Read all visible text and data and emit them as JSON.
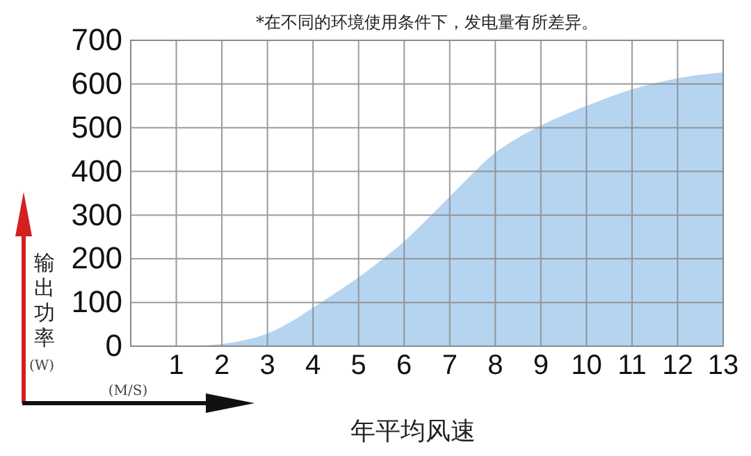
{
  "chart_data": {
    "type": "area",
    "title": "*在不同的环境使用条件下，发电量有所差异。",
    "xlabel": "年平均风速",
    "ylabel": "输出功率",
    "annotations": [
      "(W)",
      "(M/S)"
    ],
    "x": [
      1,
      1.5,
      2,
      2.5,
      3,
      3.5,
      4,
      4.5,
      5,
      5.5,
      6,
      6.5,
      7,
      7.5,
      8,
      8.5,
      9,
      10,
      11,
      12,
      13
    ],
    "series": [
      {
        "color": "#b5d4ef",
        "values": [
          0,
          1,
          5,
          14,
          29,
          55,
          88,
          122,
          158,
          197,
          240,
          290,
          342,
          395,
          443,
          477,
          505,
          550,
          588,
          613,
          627
        ]
      }
    ],
    "xlim": [
      0,
      13
    ],
    "xticks": [
      1,
      2,
      3,
      4,
      5,
      6,
      7,
      8,
      9,
      10,
      11,
      12,
      13
    ],
    "ylim": [
      0,
      700
    ],
    "yticks": [
      0,
      100,
      200,
      300,
      400,
      500,
      600,
      700
    ],
    "grid": true
  }
}
